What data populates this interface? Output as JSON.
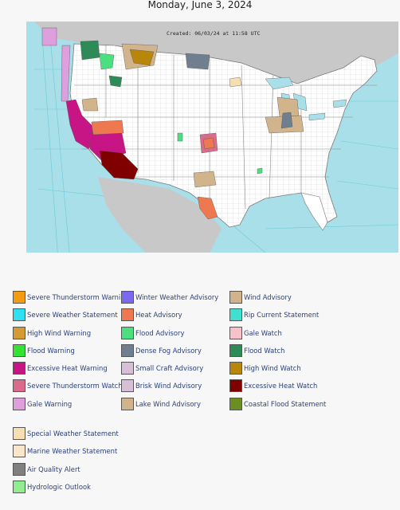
{
  "page": {
    "date": "Monday, June 3, 2024"
  },
  "map": {
    "created_text": "Created: 06/03/24 at 11:58 UTC",
    "colors": {
      "ocean": "#a9dfe8",
      "land_us": "#ffffff",
      "land_other": "#c8c8c8",
      "county_lines": "#c7c7c7",
      "state_lines": "#888888"
    }
  },
  "legend": {
    "columns": [
      [
        {
          "label": "Severe Thunderstorm Warning",
          "color": "#f39c12"
        },
        {
          "label": "Severe Weather Statement",
          "color": "#2fe0f0"
        },
        {
          "label": "High Wind Warning",
          "color": "#d29b33"
        },
        {
          "label": "Flood Warning",
          "color": "#33e233"
        },
        {
          "label": "Excessive Heat Warning",
          "color": "#c71585"
        },
        {
          "label": "Severe Thunderstorm Watch",
          "color": "#da6b8a"
        },
        {
          "label": "Gale Warning",
          "color": "#dda0dd"
        }
      ],
      [
        {
          "label": "Winter Weather Advisory",
          "color": "#7b68ee"
        },
        {
          "label": "Heat Advisory",
          "color": "#ee7950"
        },
        {
          "label": "Flood Advisory",
          "color": "#4cdf7f"
        },
        {
          "label": "Dense Fog Advisory",
          "color": "#6f7f8f"
        },
        {
          "label": "Small Craft Advisory",
          "color": "#d8bfd8"
        },
        {
          "label": "Brisk Wind Advisory",
          "color": "#d8bfd8"
        },
        {
          "label": "Lake Wind Advisory",
          "color": "#d2b48c"
        }
      ],
      [
        {
          "label": "Wind Advisory",
          "color": "#d2b48c"
        },
        {
          "label": "Rip Current Statement",
          "color": "#40e0d0"
        },
        {
          "label": "Gale Watch",
          "color": "#f6c1cb"
        },
        {
          "label": "Flood Watch",
          "color": "#2e8b57"
        },
        {
          "label": "High Wind Watch",
          "color": "#b8860b"
        },
        {
          "label": "Excessive Heat Watch",
          "color": "#800000"
        },
        {
          "label": "Coastal Flood Statement",
          "color": "#6b8e23"
        }
      ]
    ],
    "extra": [
      {
        "label": "Special Weather Statement",
        "color": "#f6deb3"
      },
      {
        "label": "Marine Weather Statement",
        "color": "#fbe6c9"
      },
      {
        "label": "Air Quality Alert",
        "color": "#808080"
      },
      {
        "label": "Hydrologic Outlook",
        "color": "#90ee90"
      }
    ]
  }
}
